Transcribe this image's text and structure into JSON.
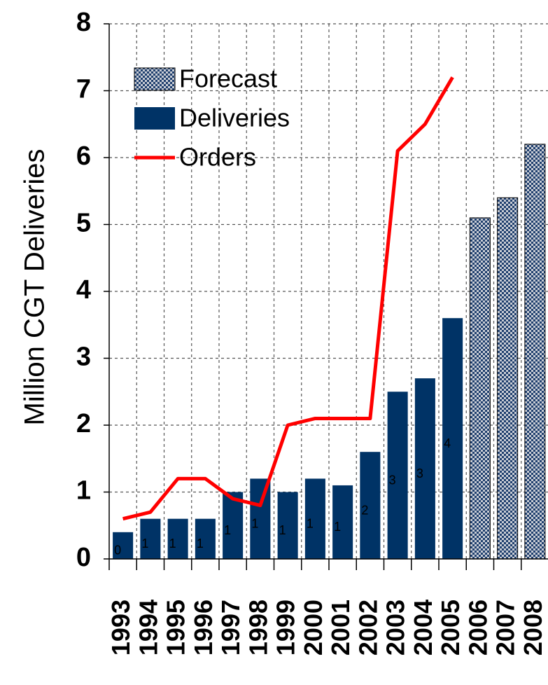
{
  "chart_data": {
    "type": "bar",
    "y_label": "Million CGT Deliveries",
    "categories": [
      "1993",
      "1994",
      "1995",
      "1996",
      "1997",
      "1998",
      "1999",
      "2000",
      "2001",
      "2002",
      "2003",
      "2004",
      "2005",
      "2006",
      "2007",
      "2008"
    ],
    "series": [
      {
        "name": "Forecast",
        "type": "bar",
        "pattern": "checker",
        "color": "#1f3f6e",
        "values": [
          null,
          null,
          null,
          null,
          null,
          null,
          null,
          null,
          null,
          null,
          null,
          null,
          null,
          5.1,
          5.4,
          6.2
        ]
      },
      {
        "name": "Deliveries",
        "type": "bar",
        "color": "#003366",
        "values": [
          0.4,
          0.6,
          0.6,
          0.6,
          1.0,
          1.2,
          1.0,
          1.2,
          1.1,
          1.6,
          2.5,
          2.7,
          3.6,
          null,
          null,
          null
        ],
        "value_labels": [
          "0",
          "1",
          "1",
          "1",
          "1",
          "1",
          "1",
          "1",
          "1",
          "2",
          "3",
          "3",
          "4",
          null,
          null,
          null
        ]
      },
      {
        "name": "Orders",
        "type": "line",
        "color": "#ff0000",
        "values": [
          0.6,
          0.7,
          1.2,
          1.2,
          0.9,
          0.8,
          2.0,
          2.1,
          2.1,
          2.1,
          6.1,
          6.5,
          7.2,
          null,
          null,
          null
        ]
      }
    ],
    "ylim": [
      0,
      8
    ],
    "yticks": [
      0,
      1,
      2,
      3,
      4,
      5,
      6,
      7,
      8
    ],
    "grid": true,
    "legend": "upper left"
  }
}
